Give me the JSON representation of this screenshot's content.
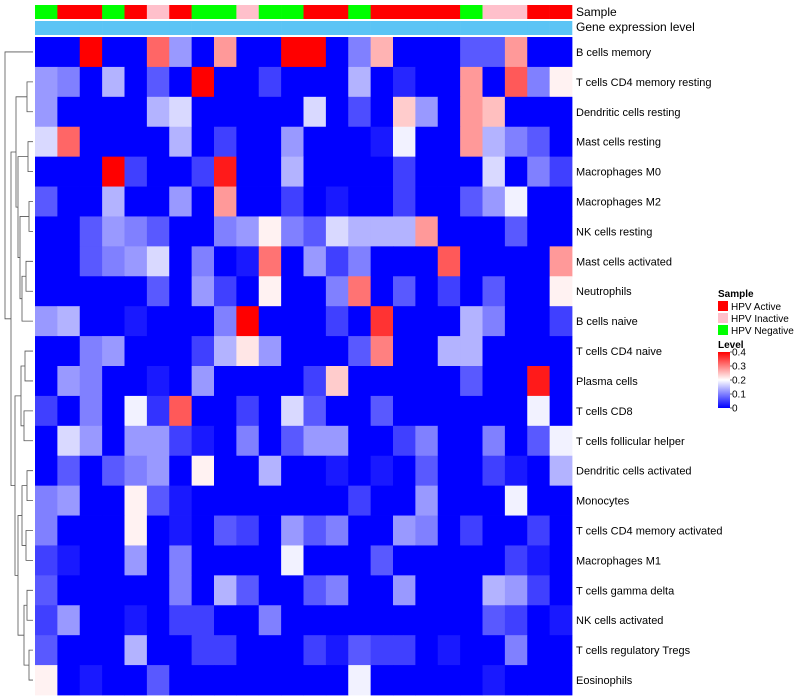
{
  "chart_data": {
    "type": "heatmap",
    "annotation_tracks": {
      "sample_label": "Sample",
      "gene_label": "Gene expression level"
    },
    "legend": {
      "sample_title": "Sample",
      "sample_entries": [
        {
          "name": "HPV Active",
          "color": "#ff0000"
        },
        {
          "name": "HPV Inactive",
          "color": "#ffc0cb"
        },
        {
          "name": "HPV Negative",
          "color": "#00ff00"
        }
      ],
      "level_title": "Level",
      "level_ticks": [
        "0.4",
        "0.3",
        "0.2",
        "0.1",
        "0"
      ],
      "level_values": [
        0.4,
        0.3,
        0.2,
        0.1,
        0
      ],
      "color_low": "#0000ff",
      "color_mid": "#ffffff",
      "color_high": "#ff0000"
    },
    "sample_groups": [
      "HPV Negative",
      "HPV Active",
      "HPV Active",
      "HPV Negative",
      "HPV Active",
      "HPV Inactive",
      "HPV Active",
      "HPV Negative",
      "HPV Negative",
      "HPV Inactive",
      "HPV Negative",
      "HPV Negative",
      "HPV Active",
      "HPV Active",
      "HPV Negative",
      "HPV Active",
      "HPV Active",
      "HPV Active",
      "HPV Active",
      "HPV Negative",
      "HPV Inactive",
      "HPV Inactive",
      "HPV Active",
      "HPV Active"
    ],
    "gene_level_track": [
      0.0,
      0.0,
      0.0,
      0.0,
      0.0,
      0.0,
      0.0,
      0.0,
      0.0,
      0.0,
      0.0,
      0.0,
      0.0,
      0.0,
      0.0,
      0.0,
      0.0,
      0.0,
      0.0,
      0.0,
      0.0,
      0.0,
      0.0,
      0.0
    ],
    "rows": [
      "B cells memory",
      "T cells CD4 memory resting",
      "Dendritic cells resting",
      "Mast cells resting",
      "Macrophages M0",
      "Macrophages M2",
      "NK cells resting",
      "Mast cells activated",
      "Neutrophils",
      "B cells naive",
      "T cells CD4 naive",
      "Plasma cells",
      "T cells CD8",
      "T cells follicular helper",
      "Dendritic cells activated",
      "Monocytes",
      "T cells CD4 memory activated",
      "Macrophages M1",
      "T cells gamma delta",
      "NK cells activated",
      "T cells regulatory  Tregs",
      "Eosinophils"
    ],
    "values": [
      [
        0.0,
        0.0,
        0.4,
        0.0,
        0.0,
        0.32,
        0.12,
        0.0,
        0.28,
        0.0,
        0.0,
        0.4,
        0.4,
        0.0,
        0.1,
        0.26,
        0.0,
        0.0,
        0.0,
        0.07,
        0.07,
        0.28,
        0.0,
        0.0
      ],
      [
        0.12,
        0.1,
        0.0,
        0.14,
        0.0,
        0.07,
        0.0,
        0.4,
        0.0,
        0.0,
        0.05,
        0.0,
        0.0,
        0.0,
        0.14,
        0.0,
        0.03,
        0.0,
        0.0,
        0.28,
        0.0,
        0.33,
        0.1,
        0.21
      ],
      [
        0.12,
        0.0,
        0.0,
        0.0,
        0.0,
        0.14,
        0.17,
        0.0,
        0.0,
        0.0,
        0.0,
        0.0,
        0.17,
        0.0,
        0.06,
        0.0,
        0.24,
        0.12,
        0.0,
        0.28,
        0.25,
        0.0,
        0.0,
        0.0
      ],
      [
        0.17,
        0.32,
        0.0,
        0.0,
        0.0,
        0.0,
        0.14,
        0.0,
        0.05,
        0.0,
        0.0,
        0.12,
        0.0,
        0.0,
        0.0,
        0.02,
        0.19,
        0.0,
        0.0,
        0.28,
        0.14,
        0.1,
        0.07,
        0.0
      ],
      [
        0.0,
        0.0,
        0.0,
        0.4,
        0.05,
        0.0,
        0.0,
        0.05,
        0.38,
        0.0,
        0.0,
        0.14,
        0.0,
        0.0,
        0.0,
        0.0,
        0.05,
        0.0,
        0.0,
        0.0,
        0.17,
        0.0,
        0.1,
        0.05
      ],
      [
        0.07,
        0.0,
        0.0,
        0.14,
        0.0,
        0.0,
        0.12,
        0.0,
        0.28,
        0.0,
        0.0,
        0.05,
        0.0,
        0.02,
        0.0,
        0.0,
        0.05,
        0.0,
        0.0,
        0.07,
        0.12,
        0.19,
        0.0,
        0.0
      ],
      [
        0.0,
        0.0,
        0.07,
        0.12,
        0.1,
        0.07,
        0.0,
        0.0,
        0.1,
        0.12,
        0.21,
        0.1,
        0.07,
        0.17,
        0.14,
        0.14,
        0.14,
        0.28,
        0.0,
        0.0,
        0.0,
        0.07,
        0.0,
        0.0
      ],
      [
        0.0,
        0.0,
        0.07,
        0.1,
        0.12,
        0.17,
        0.0,
        0.1,
        0.0,
        0.02,
        0.31,
        0.0,
        0.12,
        0.05,
        0.1,
        0.0,
        0.0,
        0.0,
        0.33,
        0.0,
        0.0,
        0.0,
        0.0,
        0.28
      ],
      [
        0.0,
        0.0,
        0.0,
        0.0,
        0.0,
        0.07,
        0.0,
        0.12,
        0.05,
        0.0,
        0.21,
        0.0,
        0.0,
        0.1,
        0.31,
        0.0,
        0.07,
        0.0,
        0.05,
        0.0,
        0.07,
        0.0,
        0.0,
        0.21
      ],
      [
        0.12,
        0.14,
        0.0,
        0.0,
        0.02,
        0.0,
        0.0,
        0.0,
        0.1,
        0.4,
        0.0,
        0.0,
        0.0,
        0.05,
        0.0,
        0.36,
        0.0,
        0.0,
        0.0,
        0.14,
        0.1,
        0.0,
        0.0,
        0.05
      ],
      [
        0.0,
        0.0,
        0.1,
        0.12,
        0.0,
        0.0,
        0.0,
        0.05,
        0.14,
        0.22,
        0.12,
        0.0,
        0.0,
        0.0,
        0.07,
        0.3,
        0.0,
        0.0,
        0.14,
        0.14,
        0.0,
        0.0,
        0.0,
        0.0
      ],
      [
        0.0,
        0.12,
        0.1,
        0.0,
        0.0,
        0.02,
        0.0,
        0.12,
        0.0,
        0.0,
        0.0,
        0.0,
        0.05,
        0.24,
        0.0,
        0.0,
        0.0,
        0.0,
        0.0,
        0.07,
        0.0,
        0.0,
        0.38,
        0.0
      ],
      [
        0.05,
        0.0,
        0.1,
        0.0,
        0.19,
        0.04,
        0.33,
        0.0,
        0.0,
        0.05,
        0.0,
        0.17,
        0.07,
        0.0,
        0.0,
        0.07,
        0.0,
        0.0,
        0.0,
        0.0,
        0.0,
        0.0,
        0.19,
        0.0
      ],
      [
        0.0,
        0.17,
        0.12,
        0.0,
        0.12,
        0.12,
        0.05,
        0.02,
        0.0,
        0.1,
        0.0,
        0.07,
        0.12,
        0.12,
        0.0,
        0.0,
        0.05,
        0.1,
        0.0,
        0.0,
        0.1,
        0.0,
        0.07,
        0.19
      ],
      [
        0.0,
        0.07,
        0.0,
        0.07,
        0.1,
        0.12,
        0.0,
        0.21,
        0.0,
        0.0,
        0.14,
        0.0,
        0.0,
        0.02,
        0.0,
        0.02,
        0.0,
        0.07,
        0.0,
        0.0,
        0.05,
        0.02,
        0.0,
        0.14
      ],
      [
        0.1,
        0.12,
        0.0,
        0.0,
        0.21,
        0.07,
        0.02,
        0.0,
        0.0,
        0.0,
        0.0,
        0.0,
        0.0,
        0.0,
        0.05,
        0.0,
        0.0,
        0.12,
        0.0,
        0.0,
        0.0,
        0.19,
        0.0,
        0.0
      ],
      [
        0.1,
        0.0,
        0.0,
        0.0,
        0.21,
        0.0,
        0.02,
        0.0,
        0.07,
        0.05,
        0.0,
        0.12,
        0.07,
        0.1,
        0.0,
        0.0,
        0.12,
        0.1,
        0.0,
        0.05,
        0.0,
        0.0,
        0.05,
        0.0
      ],
      [
        0.05,
        0.02,
        0.0,
        0.0,
        0.12,
        0.0,
        0.1,
        0.0,
        0.0,
        0.0,
        0.0,
        0.19,
        0.0,
        0.0,
        0.0,
        0.07,
        0.0,
        0.0,
        0.0,
        0.0,
        0.0,
        0.05,
        0.02,
        0.0
      ],
      [
        0.07,
        0.0,
        0.0,
        0.0,
        0.0,
        0.0,
        0.1,
        0.0,
        0.14,
        0.07,
        0.0,
        0.0,
        0.07,
        0.1,
        0.0,
        0.0,
        0.12,
        0.0,
        0.0,
        0.0,
        0.14,
        0.12,
        0.05,
        0.0
      ],
      [
        0.05,
        0.12,
        0.0,
        0.0,
        0.02,
        0.0,
        0.05,
        0.05,
        0.0,
        0.0,
        0.1,
        0.0,
        0.0,
        0.0,
        0.0,
        0.0,
        0.0,
        0.0,
        0.0,
        0.0,
        0.07,
        0.05,
        0.0,
        0.02
      ],
      [
        0.07,
        0.0,
        0.0,
        0.0,
        0.14,
        0.0,
        0.0,
        0.05,
        0.05,
        0.0,
        0.0,
        0.0,
        0.05,
        0.02,
        0.07,
        0.05,
        0.05,
        0.0,
        0.02,
        0.0,
        0.0,
        0.1,
        0.0,
        0.0
      ],
      [
        0.21,
        0.0,
        0.02,
        0.0,
        0.0,
        0.07,
        0.0,
        0.0,
        0.0,
        0.0,
        0.0,
        0.0,
        0.0,
        0.0,
        0.19,
        0.0,
        0.0,
        0.0,
        0.0,
        0.0,
        0.02,
        0.0,
        0.0,
        0.0
      ]
    ]
  }
}
